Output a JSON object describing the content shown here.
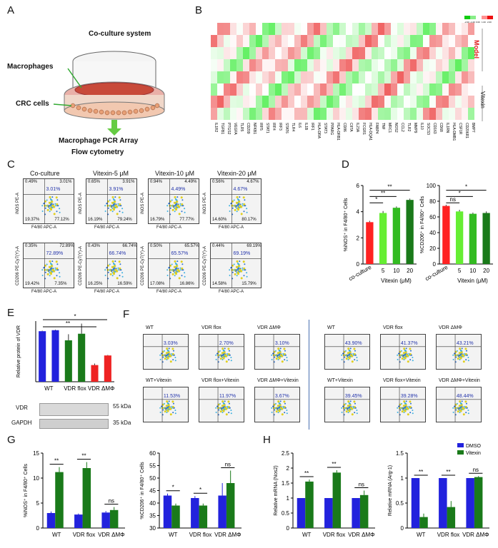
{
  "panel_letters": [
    "A",
    "B",
    "C",
    "D",
    "E",
    "F",
    "G",
    "H"
  ],
  "panelA": {
    "coculture": "Co-culture system",
    "macrophages": "Macrophages",
    "crc": "CRC cells",
    "pcr": "Macrophage PCR Array",
    "flow": "Flow cytometry"
  },
  "panelB": {
    "genes": [
      "IL1R2",
      "TGFB1",
      "PTGS2",
      "VEGFA",
      "TLR5",
      "CD209",
      "NFKB1",
      "IRF5",
      "STAT1",
      "IRF4",
      "IRF3",
      "STAT6",
      "TLR4",
      "IL6",
      "IL1B",
      "IRF1",
      "HLA-DRA",
      "STAT3",
      "PPARG",
      "HLA-DRB1",
      "CD86",
      "CIITA",
      "IL23A",
      "FCGR1",
      "HLA-DQA1",
      "FABP4",
      "TNF",
      "MRC1",
      "NOS2",
      "CCL2",
      "TLR2",
      "MMP9",
      "IL10",
      "SOCS3",
      "CD163",
      "CD68",
      "IL1RN",
      "HLA-DMB1",
      "CSF1R",
      "CD206R1",
      "BMP7"
    ],
    "model": "Model",
    "vitexin": "Vitexin",
    "scale_ticks": [
      "-2.00",
      "-1.00",
      "0.00",
      "1.00",
      "2.00"
    ]
  },
  "panelC": {
    "columns": [
      "Co-culture",
      "Vitexin-5 μM",
      "Vitexin-10 μM",
      "Vitexin-20 μM"
    ],
    "row1_ylabel": "iNOS PE-A",
    "row2_ylabel": "CD206 PE-Cy7(Y)-A",
    "xlabel": "F4/80 APC-A",
    "row1": [
      {
        "ul": "0.49%",
        "ur": "3.01%",
        "big": "3.01%",
        "ll": "19.37%",
        "lr": "77.12%"
      },
      {
        "ul": "0.65%",
        "ur": "3.91%",
        "big": "3.91%",
        "ll": "16.19%",
        "lr": "79.24%"
      },
      {
        "ul": "0.94%",
        "ur": "4.49%",
        "big": "4.49%",
        "ll": "16.79%",
        "lr": "77.77%"
      },
      {
        "ul": "0.56%",
        "ur": "4.67%",
        "big": "4.67%",
        "ll": "14.60%",
        "lr": "80.17%"
      }
    ],
    "row2": [
      {
        "ul": "0.35%",
        "ur": "72.89%",
        "big": "72.89%",
        "ll": "19.42%",
        "lr": "7.35%"
      },
      {
        "ul": "0.43%",
        "ur": "66.74%",
        "big": "66.74%",
        "ll": "16.25%",
        "lr": "16.59%"
      },
      {
        "ul": "0.50%",
        "ur": "65.57%",
        "big": "65.57%",
        "ll": "17.08%",
        "lr": "16.86%"
      },
      {
        "ul": "0.44%",
        "ur": "69.19%",
        "big": "69.19%",
        "ll": "14.58%",
        "lr": "15.79%"
      }
    ]
  },
  "panelE": {
    "ylabel": "Relative protein of VDR",
    "groups": [
      "WT",
      "VDR flox",
      "VDR ΔMΦ"
    ],
    "blot_labels": [
      "VDR",
      "GAPDH"
    ],
    "kda": [
      "55 kDa",
      "35 kDa"
    ]
  },
  "panelF": {
    "left_titles": [
      "WT",
      "VDR flox",
      "VDR ΔMΦ",
      "WT+Vitexin",
      "VDR flox+Vitexin",
      "VDR ΔMΦ+Vitexin"
    ],
    "left_vals": [
      "3.03%",
      "2.70%",
      "3.10%",
      "11.53%",
      "11.97%",
      "3.67%"
    ],
    "right_titles": [
      "WT",
      "VDR flox",
      "VDR ΔMΦ",
      "WT+Vitexin",
      "VDR flox+Vitexin",
      "VDR ΔMΦ+Vitexin"
    ],
    "right_vals": [
      "43.90%",
      "41.37%",
      "43.21%",
      "39.45%",
      "39.28%",
      "48.44%"
    ]
  },
  "chart_data": [
    {
      "id": "D-left",
      "type": "bar",
      "ylabel": "%iNOS⁺ in F4/80⁺ Cells",
      "xlabel": "Vitexin (μM)",
      "categories": [
        "co-culture",
        "5",
        "10",
        "20"
      ],
      "values": [
        3.2,
        3.9,
        4.3,
        4.9
      ],
      "errors": [
        0.1,
        0.15,
        0.1,
        0.1
      ],
      "ylim": [
        0,
        6
      ],
      "yticks": [
        0,
        2,
        4,
        6
      ],
      "colors": [
        "#ff2222",
        "#66ee33",
        "#33bb22",
        "#1a7a1a"
      ],
      "sig": [
        "*",
        "**",
        "**"
      ]
    },
    {
      "id": "D-right",
      "type": "bar",
      "ylabel": "%CD206⁺ in F4/80⁺ Cells",
      "xlabel": "Vitexin (μM)",
      "categories": [
        "co-culture",
        "5",
        "10",
        "20"
      ],
      "values": [
        74,
        67,
        64,
        65
      ],
      "errors": [
        1.5,
        2,
        1.5,
        2
      ],
      "ylim": [
        0,
        100
      ],
      "yticks": [
        0,
        20,
        40,
        60,
        80,
        100
      ],
      "colors": [
        "#ff2222",
        "#66ee33",
        "#33bb22",
        "#1a7a1a"
      ],
      "sig": [
        "ns",
        "*",
        "*"
      ]
    },
    {
      "id": "E",
      "type": "bar",
      "ylabel": "Relative protein of VDR",
      "categories": [
        "WT",
        "WT",
        "VDR flox",
        "VDR flox",
        "VDR ΔMΦ",
        "VDR ΔMΦ"
      ],
      "values": [
        1.0,
        1.02,
        0.82,
        0.95,
        0.33,
        0.52
      ],
      "errors": [
        0.01,
        0.01,
        0.12,
        0.2,
        0.03,
        0.01
      ],
      "ylim": [
        0,
        1.2
      ],
      "colors": [
        "#2222dd",
        "#2222dd",
        "#1a7a1a",
        "#1a7a1a",
        "#ee2222",
        "#ee2222"
      ],
      "sig": [
        "**",
        "*"
      ]
    },
    {
      "id": "G-left",
      "type": "bar",
      "ylabel": "%iNOS⁺ in F4/80⁺ Cells",
      "categories": [
        "WT",
        "VDR flox",
        "VDR ΔMΦ"
      ],
      "series": [
        {
          "name": "DMSO",
          "values": [
            3,
            2.7,
            3.1
          ]
        },
        {
          "name": "Vitexin",
          "values": [
            11.2,
            12,
            3.6
          ]
        }
      ],
      "errors": [
        [
          0.3,
          0.2,
          0.3
        ],
        [
          1.0,
          1.2,
          0.6
        ]
      ],
      "ylim": [
        0,
        15
      ],
      "yticks": [
        0,
        5,
        10,
        15
      ],
      "sig": [
        "**",
        "**",
        "ns"
      ]
    },
    {
      "id": "G-right",
      "type": "bar",
      "ylabel": "%CD206⁺ in F4/80⁺ Cells",
      "categories": [
        "WT",
        "VDR flox",
        "VDR ΔMΦ"
      ],
      "series": [
        {
          "name": "DMSO",
          "values": [
            43,
            42,
            43
          ]
        },
        {
          "name": "Vitexin",
          "values": [
            39,
            39,
            48
          ]
        }
      ],
      "errors": [
        [
          0.8,
          0.8,
          5
        ],
        [
          0.8,
          0.8,
          5
        ]
      ],
      "ylim": [
        30,
        60
      ],
      "yticks": [
        30,
        35,
        40,
        45,
        50,
        55,
        60
      ],
      "sig": [
        "*",
        "*",
        "ns"
      ]
    },
    {
      "id": "H-left",
      "type": "bar",
      "ylabel": "Relative mRNA (Nos2)",
      "categories": [
        "WT",
        "VDR flox",
        "VDR ΔMΦ"
      ],
      "series": [
        {
          "name": "DMSO",
          "values": [
            1,
            1,
            1
          ]
        },
        {
          "name": "Vitexin",
          "values": [
            1.55,
            1.85,
            1.1
          ]
        }
      ],
      "errors": [
        [
          0,
          0,
          0
        ],
        [
          0.07,
          0.08,
          0.15
        ]
      ],
      "ylim": [
        0,
        2.5
      ],
      "yticks": [
        0,
        0.5,
        1,
        1.5,
        2,
        2.5
      ],
      "sig": [
        "**",
        "**",
        "ns"
      ]
    },
    {
      "id": "H-right",
      "type": "bar",
      "ylabel": "Relative mRNA (Arg-1)",
      "categories": [
        "WT",
        "VDR flox",
        "VDR ΔMΦ"
      ],
      "series": [
        {
          "name": "DMSO",
          "values": [
            1,
            1,
            1
          ]
        },
        {
          "name": "Vitexin",
          "values": [
            0.22,
            0.42,
            1.02
          ]
        }
      ],
      "errors": [
        [
          0,
          0,
          0
        ],
        [
          0.07,
          0.12,
          0.02
        ]
      ],
      "ylim": [
        0,
        1.5
      ],
      "yticks": [
        0,
        0.5,
        1,
        1.5
      ],
      "legend": [
        "DMSO",
        "Vitexin"
      ],
      "sig": [
        "**",
        "**",
        "ns"
      ]
    }
  ],
  "colors": {
    "dmso": "#2222dd",
    "vitexin": "#1a7a1a"
  }
}
